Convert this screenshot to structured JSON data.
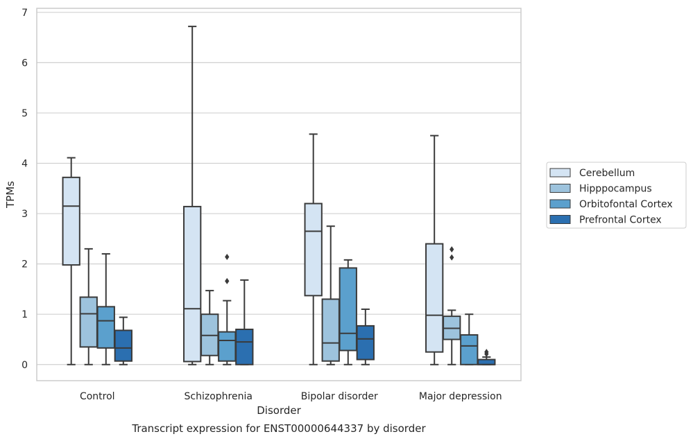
{
  "chart_data": {
    "type": "box",
    "xlabel": "Disorder",
    "ylabel": "TPMs",
    "caption": "Transcript expression for ENST00000644337 by disorder",
    "ylim": [
      -0.32,
      7.08
    ],
    "yticks": [
      0,
      1,
      2,
      3,
      4,
      5,
      6,
      7
    ],
    "categories": [
      "Control",
      "Schizophrenia",
      "Bipolar disorder",
      "Major depression"
    ],
    "grid": "horizontal",
    "legend_position": "right",
    "series": [
      {
        "name": "Cerebellum",
        "color": "#d4e4f3",
        "boxes": [
          {
            "whisker_low": 0.0,
            "q1": 1.98,
            "median": 3.15,
            "q3": 3.72,
            "whisker_high": 4.11,
            "outliers": []
          },
          {
            "whisker_low": 0.0,
            "q1": 0.06,
            "median": 1.11,
            "q3": 3.14,
            "whisker_high": 6.72,
            "outliers": []
          },
          {
            "whisker_low": 0.0,
            "q1": 1.37,
            "median": 2.65,
            "q3": 3.2,
            "whisker_high": 4.58,
            "outliers": []
          },
          {
            "whisker_low": 0.0,
            "q1": 0.25,
            "median": 0.98,
            "q3": 2.4,
            "whisker_high": 4.55,
            "outliers": []
          }
        ]
      },
      {
        "name": "Hipppocampus",
        "color": "#9dc3dd",
        "boxes": [
          {
            "whisker_low": 0.0,
            "q1": 0.35,
            "median": 1.01,
            "q3": 1.34,
            "whisker_high": 2.3,
            "outliers": []
          },
          {
            "whisker_low": 0.0,
            "q1": 0.18,
            "median": 0.58,
            "q3": 1.0,
            "whisker_high": 1.47,
            "outliers": []
          },
          {
            "whisker_low": 0.0,
            "q1": 0.07,
            "median": 0.43,
            "q3": 1.3,
            "whisker_high": 2.75,
            "outliers": []
          },
          {
            "whisker_low": 0.0,
            "q1": 0.5,
            "median": 0.72,
            "q3": 0.96,
            "whisker_high": 1.08,
            "outliers": [
              2.13,
              2.29
            ]
          }
        ]
      },
      {
        "name": "Orbitofontal Cortex",
        "color": "#5ba0cd",
        "boxes": [
          {
            "whisker_low": 0.0,
            "q1": 0.33,
            "median": 0.87,
            "q3": 1.15,
            "whisker_high": 2.2,
            "outliers": []
          },
          {
            "whisker_low": 0.0,
            "q1": 0.07,
            "median": 0.48,
            "q3": 0.65,
            "whisker_high": 1.27,
            "outliers": [
              1.66,
              2.14
            ]
          },
          {
            "whisker_low": 0.0,
            "q1": 0.28,
            "median": 0.62,
            "q3": 1.92,
            "whisker_high": 2.08,
            "outliers": []
          },
          {
            "whisker_low": 0.0,
            "q1": 0.0,
            "median": 0.37,
            "q3": 0.59,
            "whisker_high": 1.0,
            "outliers": []
          }
        ]
      },
      {
        "name": "Prefrontal Cortex",
        "color": "#2b6fb0",
        "boxes": [
          {
            "whisker_low": 0.0,
            "q1": 0.07,
            "median": 0.33,
            "q3": 0.68,
            "whisker_high": 0.94,
            "outliers": []
          },
          {
            "whisker_low": 0.0,
            "q1": 0.0,
            "median": 0.45,
            "q3": 0.7,
            "whisker_high": 1.68,
            "outliers": []
          },
          {
            "whisker_low": 0.0,
            "q1": 0.1,
            "median": 0.51,
            "q3": 0.77,
            "whisker_high": 1.1,
            "outliers": []
          },
          {
            "whisker_low": 0.0,
            "q1": 0.0,
            "median": 0.0,
            "q3": 0.1,
            "whisker_high": 0.15,
            "outliers": [
              0.21,
              0.25
            ]
          }
        ]
      }
    ]
  },
  "colors": {
    "gridline": "#d0d0d0",
    "frame": "#cccccc",
    "box_edge": "#3a3a3a"
  }
}
